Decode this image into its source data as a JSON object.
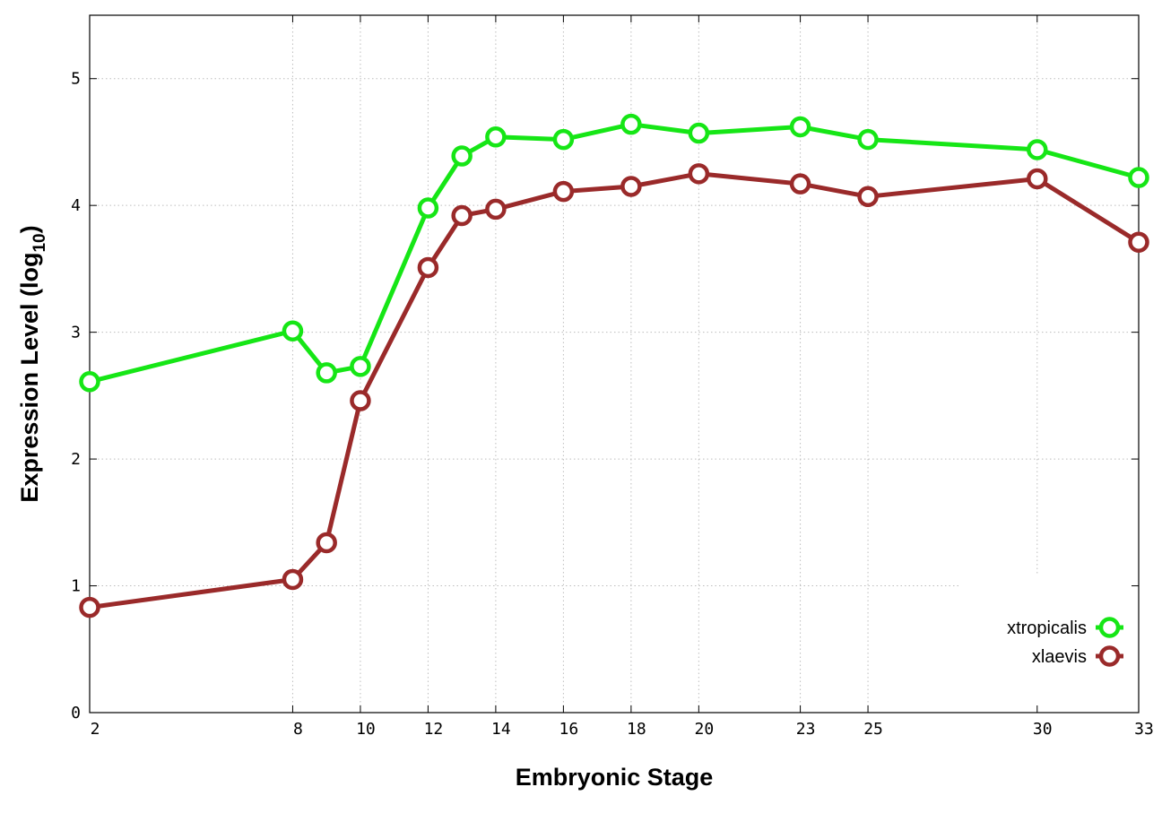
{
  "chart_data": {
    "type": "line",
    "xlabel": "Embryonic Stage",
    "ylabel": {
      "main": "Expression Level (log",
      "subscript": "10",
      "suffix": ")"
    },
    "x_ticks": [
      2,
      8,
      10,
      12,
      14,
      16,
      18,
      20,
      23,
      25,
      30,
      33
    ],
    "x_tick_labels": [
      "2",
      "8",
      "10",
      "12",
      "14",
      "16",
      "18",
      "20",
      "23",
      "25",
      "30",
      "33"
    ],
    "y_ticks": [
      0,
      1,
      2,
      3,
      4,
      5
    ],
    "y_tick_labels": [
      "0",
      "1",
      "2",
      "3",
      "4",
      "5"
    ],
    "ylim": [
      0,
      5.5
    ],
    "x_stages": [
      2,
      8,
      9,
      10,
      12,
      13,
      14,
      16,
      18,
      20,
      23,
      25,
      30,
      33
    ],
    "grid": true,
    "legend_position": "bottom-right",
    "series": [
      {
        "name": "xtropicalis",
        "color": "#16e616",
        "values": [
          2.61,
          3.01,
          2.68,
          2.73,
          3.98,
          4.39,
          4.54,
          4.52,
          4.64,
          4.57,
          4.62,
          4.52,
          4.44,
          4.22
        ]
      },
      {
        "name": "xlaevis",
        "color": "#9a2a2a",
        "values": [
          0.83,
          1.05,
          1.34,
          2.46,
          3.51,
          3.92,
          3.97,
          4.11,
          4.15,
          4.25,
          4.17,
          4.07,
          4.21,
          3.71
        ]
      }
    ]
  }
}
